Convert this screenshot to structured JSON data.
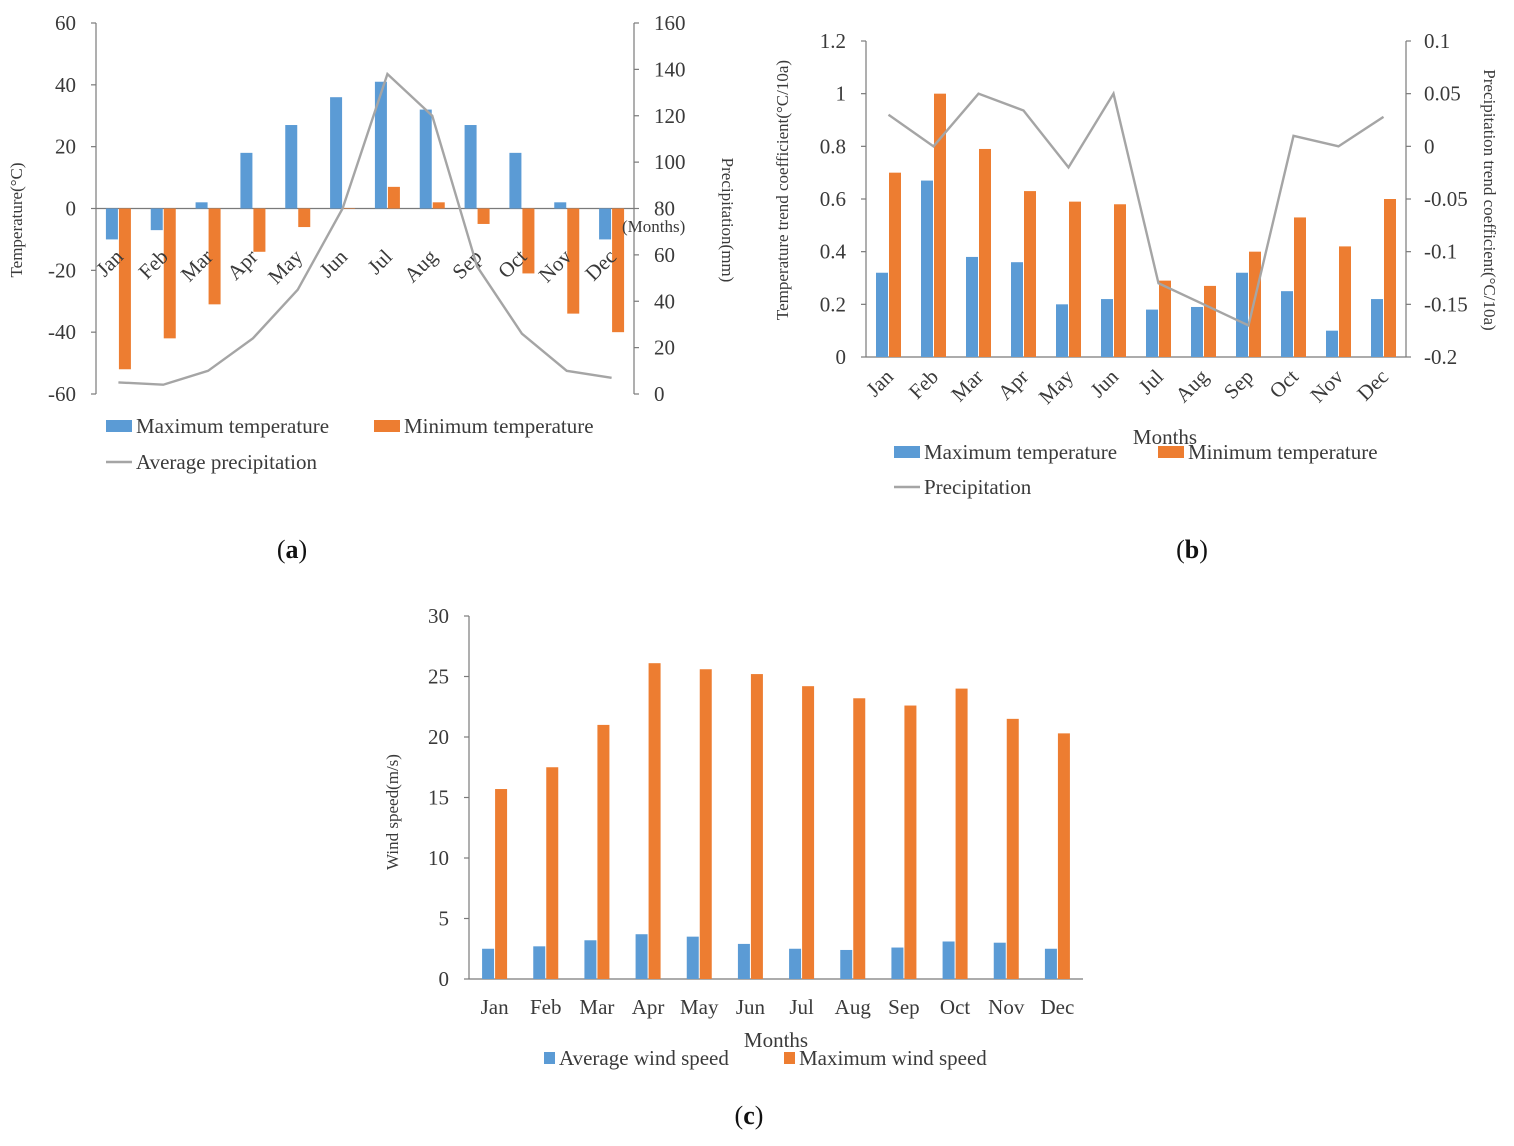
{
  "colors": {
    "blue": "#5b9bd5",
    "orange": "#ed7d31",
    "gray": "#a5a5a5"
  },
  "chart_data": [
    {
      "id": "a",
      "type": "bar+line",
      "caption": "(a)",
      "categories": [
        "Jan",
        "Feb",
        "Mar",
        "Apr",
        "May",
        "Jun",
        "Jul",
        "Aug",
        "Sep",
        "Oct",
        "Nov",
        "Dec"
      ],
      "xlabel": "(Months)",
      "ylabel": "Temperature(°C)",
      "y2label": "Precipitation(mm)",
      "ylim": [
        -60,
        60
      ],
      "yticks": [
        -60,
        -40,
        -20,
        0,
        20,
        40,
        60
      ],
      "y2lim": [
        0,
        160
      ],
      "y2ticks": [
        0,
        20,
        40,
        60,
        80,
        100,
        120,
        140,
        160
      ],
      "series": [
        {
          "name": "Maximum temperature",
          "kind": "bar",
          "axis": "left",
          "color": "blue",
          "values": [
            -10,
            -7,
            2,
            18,
            27,
            36,
            41,
            32,
            27,
            18,
            2,
            -10
          ]
        },
        {
          "name": "Minimum temperature",
          "kind": "bar",
          "axis": "left",
          "color": "orange",
          "values": [
            -52,
            -42,
            -31,
            -14,
            -6,
            0,
            7,
            2,
            -5,
            -21,
            -34,
            -40
          ]
        },
        {
          "name": "Average precipitation",
          "kind": "line",
          "axis": "right",
          "color": "gray",
          "values": [
            5,
            4,
            10,
            24,
            45,
            80,
            138,
            120,
            55,
            26,
            10,
            7
          ]
        }
      ]
    },
    {
      "id": "b",
      "type": "bar+line",
      "caption": "(b)",
      "categories": [
        "Jan",
        "Feb",
        "Mar",
        "Apr",
        "May",
        "Jun",
        "Jul",
        "Aug",
        "Sep",
        "Oct",
        "Nov",
        "Dec"
      ],
      "xlabel": "Months",
      "ylabel": "Temperature trend coefficient(°C/10a)",
      "y2label": "Precipitation trend coefficient(°C/10a)",
      "ylim": [
        0,
        1.2
      ],
      "yticks": [
        0,
        0.2,
        0.4,
        0.6,
        0.8,
        1,
        1.2
      ],
      "y2lim": [
        -0.2,
        0.1
      ],
      "y2ticks": [
        -0.2,
        -0.15,
        -0.1,
        -0.05,
        0,
        0.05,
        0.1
      ],
      "series": [
        {
          "name": "Maximum temperature",
          "kind": "bar",
          "axis": "left",
          "color": "blue",
          "values": [
            0.32,
            0.67,
            0.38,
            0.36,
            0.2,
            0.22,
            0.18,
            0.19,
            0.32,
            0.25,
            0.1,
            0.22
          ]
        },
        {
          "name": "Minimum temperature",
          "kind": "bar",
          "axis": "left",
          "color": "orange",
          "values": [
            0.7,
            1.0,
            0.79,
            0.63,
            0.59,
            0.58,
            0.29,
            0.27,
            0.4,
            0.53,
            0.42,
            0.6
          ]
        },
        {
          "name": "Precipitation",
          "kind": "line",
          "axis": "right",
          "color": "gray",
          "values": [
            0.03,
            0.0,
            0.05,
            0.034,
            -0.02,
            0.05,
            -0.13,
            -0.15,
            -0.17,
            0.01,
            0.0,
            0.028
          ]
        }
      ]
    },
    {
      "id": "c",
      "type": "bar",
      "caption": "(c)",
      "categories": [
        "Jan",
        "Feb",
        "Mar",
        "Apr",
        "May",
        "Jun",
        "Jul",
        "Aug",
        "Sep",
        "Oct",
        "Nov",
        "Dec"
      ],
      "xlabel": "Months",
      "ylabel": "Wind speed(m/s)",
      "ylim": [
        0,
        30
      ],
      "yticks": [
        0,
        5,
        10,
        15,
        20,
        25,
        30
      ],
      "series": [
        {
          "name": "Average wind speed",
          "kind": "bar",
          "axis": "left",
          "color": "blue",
          "values": [
            2.5,
            2.7,
            3.2,
            3.7,
            3.5,
            2.9,
            2.5,
            2.4,
            2.6,
            3.1,
            3.0,
            2.5
          ]
        },
        {
          "name": "Maximum wind speed",
          "kind": "bar",
          "axis": "left",
          "color": "orange",
          "values": [
            15.7,
            17.5,
            21.0,
            26.1,
            25.6,
            25.2,
            24.2,
            23.2,
            22.6,
            24.0,
            21.5,
            20.3
          ]
        }
      ]
    }
  ]
}
